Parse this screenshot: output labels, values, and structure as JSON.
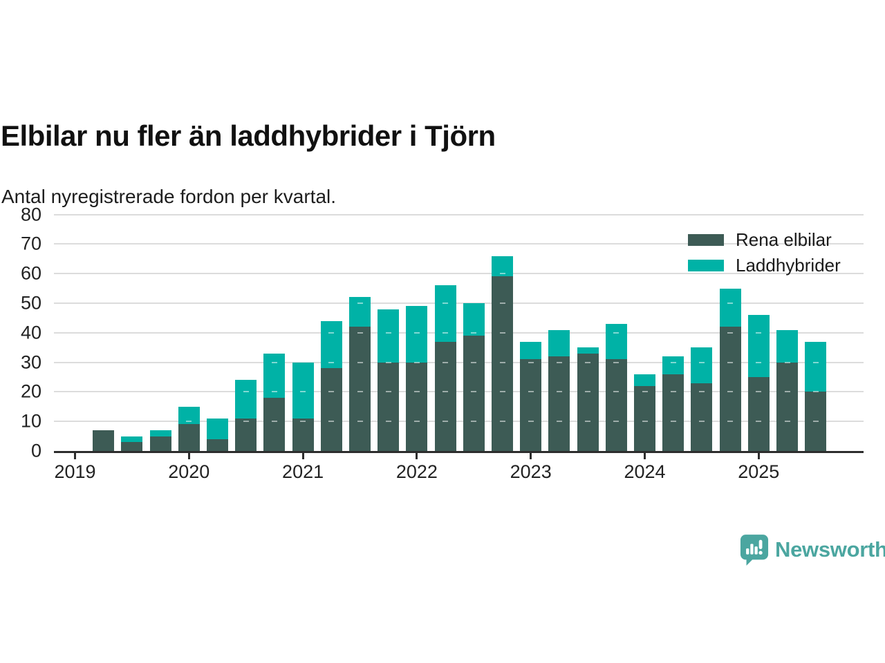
{
  "header": {
    "title": "Elbilar nu fler än laddhybrider i Tjörn",
    "subtitle": "Antal nyregistrerade fordon per kvartal."
  },
  "legend": {
    "items": [
      {
        "label": "Rena elbilar",
        "color": "#3d5b55"
      },
      {
        "label": "Laddhybrider",
        "color": "#00b2a6"
      }
    ]
  },
  "footer": {
    "brand": "Newsworthy",
    "brand_color": "#4ba6a0",
    "logo_icon": "speech-bubble-bar-chart-exclamation"
  },
  "colors": {
    "background": "#ffffff",
    "grid": "#dcdcdc",
    "axis": "#2d2d2d",
    "text": "#1d1d1d"
  },
  "chart_data": {
    "type": "bar",
    "stacked": true,
    "title": "Elbilar nu fler än laddhybrider i Tjörn",
    "subtitle": "Antal nyregistrerade fordon per kvartal.",
    "xlabel": "",
    "ylabel": "",
    "categories": [
      "2019 Q2",
      "2019 Q3",
      "2019 Q4",
      "2020 Q1",
      "2020 Q2",
      "2020 Q3",
      "2020 Q4",
      "2021 Q1",
      "2021 Q2",
      "2021 Q3",
      "2021 Q4",
      "2022 Q1",
      "2022 Q2",
      "2022 Q3",
      "2022 Q4",
      "2023 Q1",
      "2023 Q2",
      "2023 Q3",
      "2023 Q4",
      "2024 Q1",
      "2024 Q2",
      "2024 Q3",
      "2024 Q4",
      "2025 Q1",
      "2025 Q2",
      "2025 Q3"
    ],
    "axis_start_quarter": "2019 Q1",
    "series": [
      {
        "name": "Rena elbilar",
        "color": "#3d5b55",
        "values": [
          7,
          3,
          5,
          9,
          4,
          11,
          18,
          11,
          28,
          42,
          30,
          30,
          37,
          39,
          59,
          31,
          32,
          33,
          31,
          22,
          26,
          23,
          42,
          25,
          30,
          20
        ]
      },
      {
        "name": "Laddhybrider",
        "color": "#00b2a6",
        "values": [
          0,
          2,
          2,
          6,
          7,
          13,
          15,
          19,
          16,
          10,
          18,
          19,
          19,
          11,
          7,
          6,
          9,
          2,
          12,
          4,
          6,
          12,
          13,
          21,
          11,
          17
        ]
      }
    ],
    "totals": [
      7,
      5,
      7,
      15,
      11,
      24,
      33,
      30,
      44,
      52,
      48,
      49,
      56,
      50,
      66,
      37,
      41,
      35,
      43,
      26,
      32,
      35,
      55,
      46,
      41,
      37
    ],
    "x_tick_labels": [
      "2019",
      "2020",
      "2021",
      "2022",
      "2023",
      "2024",
      "2025"
    ],
    "y_ticks": [
      0,
      10,
      20,
      30,
      40,
      50,
      60,
      70,
      80
    ],
    "ylim": [
      0,
      80
    ],
    "grid": true,
    "legend_position": "top-right"
  }
}
